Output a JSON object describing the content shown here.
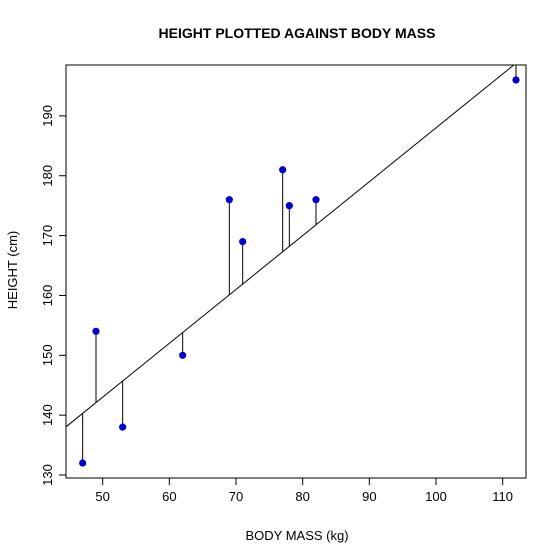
{
  "chart_data": {
    "type": "scatter",
    "title": "HEIGHT PLOTTED AGAINST BODY MASS",
    "xlabel": "BODY MASS (kg)",
    "ylabel": "HEIGHT (cm)",
    "xlim": [
      44.5,
      113.5
    ],
    "ylim": [
      129.5,
      198.5
    ],
    "xticks": [
      50,
      60,
      70,
      80,
      90,
      100,
      110
    ],
    "yticks": [
      130,
      140,
      150,
      160,
      170,
      180,
      190
    ],
    "x": [
      47,
      49,
      53,
      62,
      69,
      71,
      77,
      78,
      82,
      112
    ],
    "y": [
      132,
      154,
      138,
      150,
      176,
      169,
      181,
      175,
      176,
      196
    ],
    "regression_line": {
      "intercept": 98.0,
      "slope": 0.9
    },
    "residual_lines": true,
    "grid": false,
    "point_color": "#0000CD",
    "line_color": "#000000"
  }
}
